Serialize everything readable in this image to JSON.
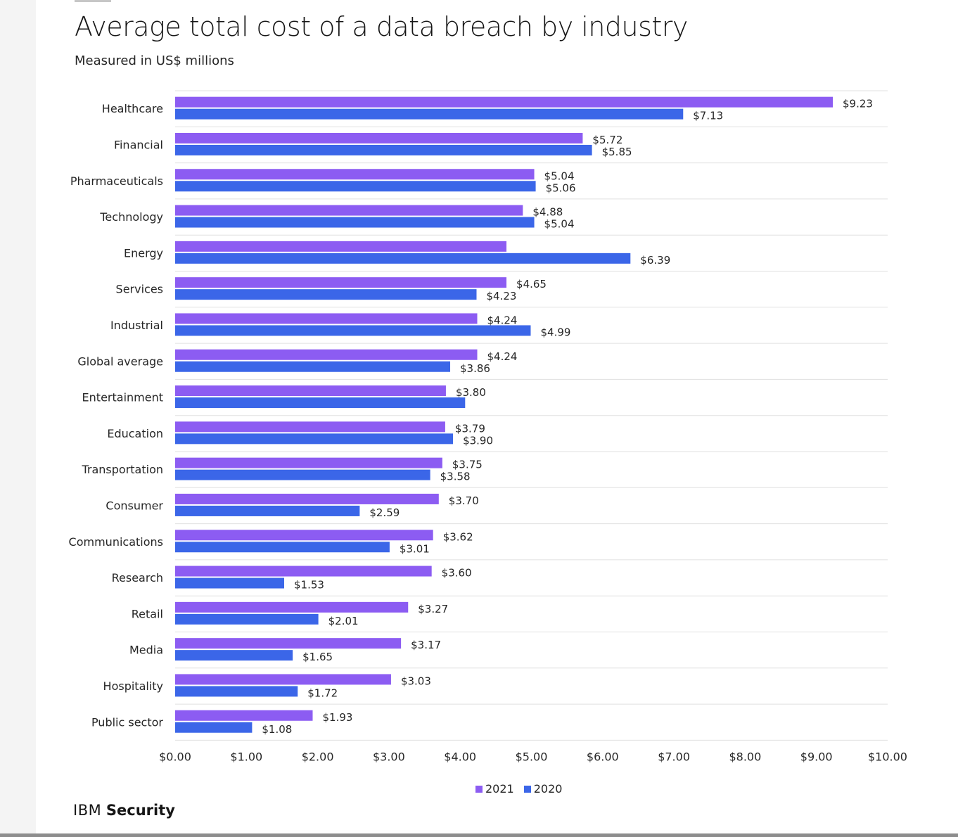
{
  "colors": {
    "series_2021": "#8c5cf2",
    "series_2020": "#3b66e8",
    "gridline": "#e0e0e0",
    "text": "#161616"
  },
  "brand": {
    "name_light": "IBM",
    "name_bold": "Security"
  },
  "chart_data": {
    "type": "bar",
    "orientation": "horizontal",
    "title": "Average total cost of a data breach by industry",
    "subtitle": "Measured in US$ millions",
    "categories": [
      "Healthcare",
      "Financial",
      "Pharmaceuticals",
      "Technology",
      "Energy",
      "Services",
      "Industrial",
      "Global average",
      "Entertainment",
      "Education",
      "Transportation",
      "Consumer",
      "Communications",
      "Research",
      "Retail",
      "Media",
      "Hospitality",
      "Public sector"
    ],
    "series": [
      {
        "name": "2021",
        "values": [
          9.23,
          5.72,
          5.04,
          4.88,
          4.65,
          4.65,
          4.24,
          4.24,
          3.8,
          3.79,
          3.75,
          3.7,
          3.62,
          3.6,
          3.27,
          3.17,
          3.03,
          1.93
        ],
        "labels": [
          "$9.23",
          "$5.72",
          "$5.04",
          "$4.88",
          "",
          "$4.65",
          "$4.24",
          "$4.24",
          "$3.80",
          "$3.79",
          "$3.75",
          "$3.70",
          "$3.62",
          "$3.60",
          "$3.27",
          "$3.17",
          "$3.03",
          "$1.93"
        ]
      },
      {
        "name": "2020",
        "values": [
          7.13,
          5.85,
          5.06,
          5.04,
          6.39,
          4.23,
          4.99,
          3.86,
          4.07,
          3.9,
          3.58,
          2.59,
          3.01,
          1.53,
          2.01,
          1.65,
          1.72,
          1.08
        ],
        "labels": [
          "$7.13",
          "$5.85",
          "$5.06",
          "$5.04",
          "$6.39",
          "$4.23",
          "$4.99",
          "$3.86",
          "",
          "$3.90",
          "$3.58",
          "$2.59",
          "$3.01",
          "$1.53",
          "$2.01",
          "$1.65",
          "$1.72",
          "$1.08"
        ]
      }
    ],
    "xlim": [
      0,
      10
    ],
    "xticks": [
      "$0.00",
      "$1.00",
      "$2.00",
      "$3.00",
      "$4.00",
      "$5.00",
      "$6.00",
      "$7.00",
      "$8.00",
      "$9.00",
      "$10.00"
    ],
    "grid": "horizontal separators between categories",
    "legend": "bottom-center"
  }
}
